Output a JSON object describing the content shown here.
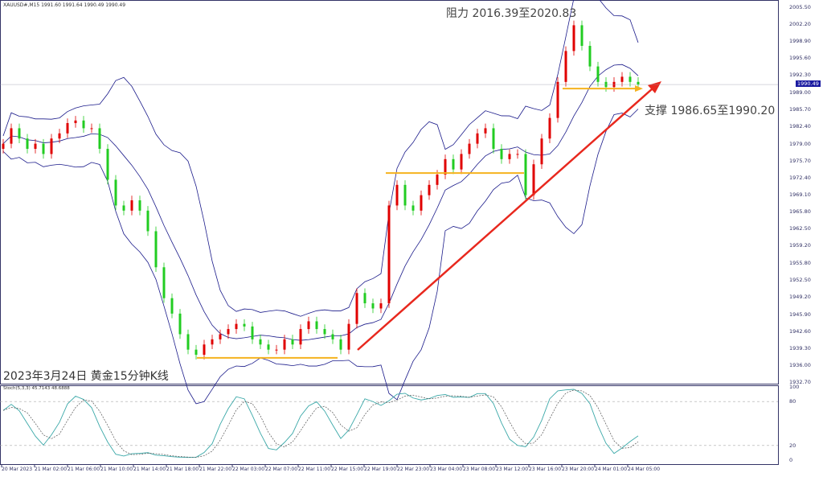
{
  "header": {
    "symbol_line": "XAUUSD#,M15  1991.60 1991.64 1990.49 1990.49"
  },
  "annotations": {
    "resistance": "阻力 2016.39至2020.83",
    "support": "支撑 1986.65至1990.20",
    "caption": "2023年3月24日 黄金15分钟K线"
  },
  "current_price": "1990.49",
  "stoch_label": "Stoch(5,3,3) 45.7143 48.6888",
  "colors": {
    "up": "#e00000",
    "down": "#22cc22",
    "bands": "#1a1a8a",
    "support_line": "#f5b21e",
    "trend_arrow": "#e8281e",
    "stoch_main": "#3aa8a8",
    "stoch_signal": "#555555"
  },
  "chart_data": {
    "type": "candlestick",
    "indicators": [
      "Bollinger Bands",
      "Stochastic(5,3,3)"
    ],
    "ylim": [
      1932.7,
      2005.5
    ],
    "y_ticks": [
      "2005.50",
      "2002.20",
      "1998.90",
      "1995.60",
      "1992.30",
      "1989.00",
      "1985.70",
      "1982.40",
      "1979.00",
      "1975.70",
      "1972.40",
      "1969.10",
      "1965.80",
      "1962.50",
      "1959.20",
      "1955.80",
      "1952.50",
      "1949.20",
      "1945.90",
      "1942.60",
      "1939.30",
      "1936.00",
      "1932.70"
    ],
    "stoch_ticks": [
      "100",
      "80",
      "20",
      "0"
    ],
    "x_ticks": [
      "20 Mar 2023",
      "21 Mar 02:00",
      "21 Mar 06:00",
      "21 Mar 10:00",
      "21 Mar 14:00",
      "21 Mar 18:00",
      "21 Mar 22:00",
      "22 Mar 03:00",
      "22 Mar 07:00",
      "22 Mar 11:00",
      "22 Mar 15:00",
      "22 Mar 19:00",
      "22 Mar 23:00",
      "23 Mar 04:00",
      "23 Mar 08:00",
      "23 Mar 12:00",
      "23 Mar 16:00",
      "23 Mar 20:00",
      "24 Mar 01:00",
      "24 Mar 05:00"
    ],
    "close": [
      1979,
      1982,
      1980,
      1978,
      1979,
      1977,
      1980,
      1981,
      1983,
      1983.5,
      1982,
      1982,
      1978,
      1972,
      1967,
      1966,
      1968,
      1966,
      1962,
      1955,
      1949,
      1946,
      1942,
      1939,
      1938,
      1940,
      1941,
      1942,
      1943,
      1944,
      1943.5,
      1941,
      1940,
      1939,
      1939,
      1941,
      1940,
      1943,
      1944.5,
      1943,
      1942,
      1941,
      1939,
      1944,
      1950,
      1948,
      1947,
      1948,
      1967,
      1971,
      1967,
      1966,
      1969,
      1971,
      1973,
      1976,
      1974,
      1977,
      1979,
      1981,
      1982,
      1978,
      1976,
      1977,
      1977,
      1969,
      1975,
      1980,
      1984,
      1991,
      1997,
      2002,
      1998,
      1994,
      1991,
      1990,
      1991,
      1992,
      1991,
      1990.5
    ],
    "horizontal_levels": [
      1937.4,
      1973.3,
      1989.7
    ]
  }
}
